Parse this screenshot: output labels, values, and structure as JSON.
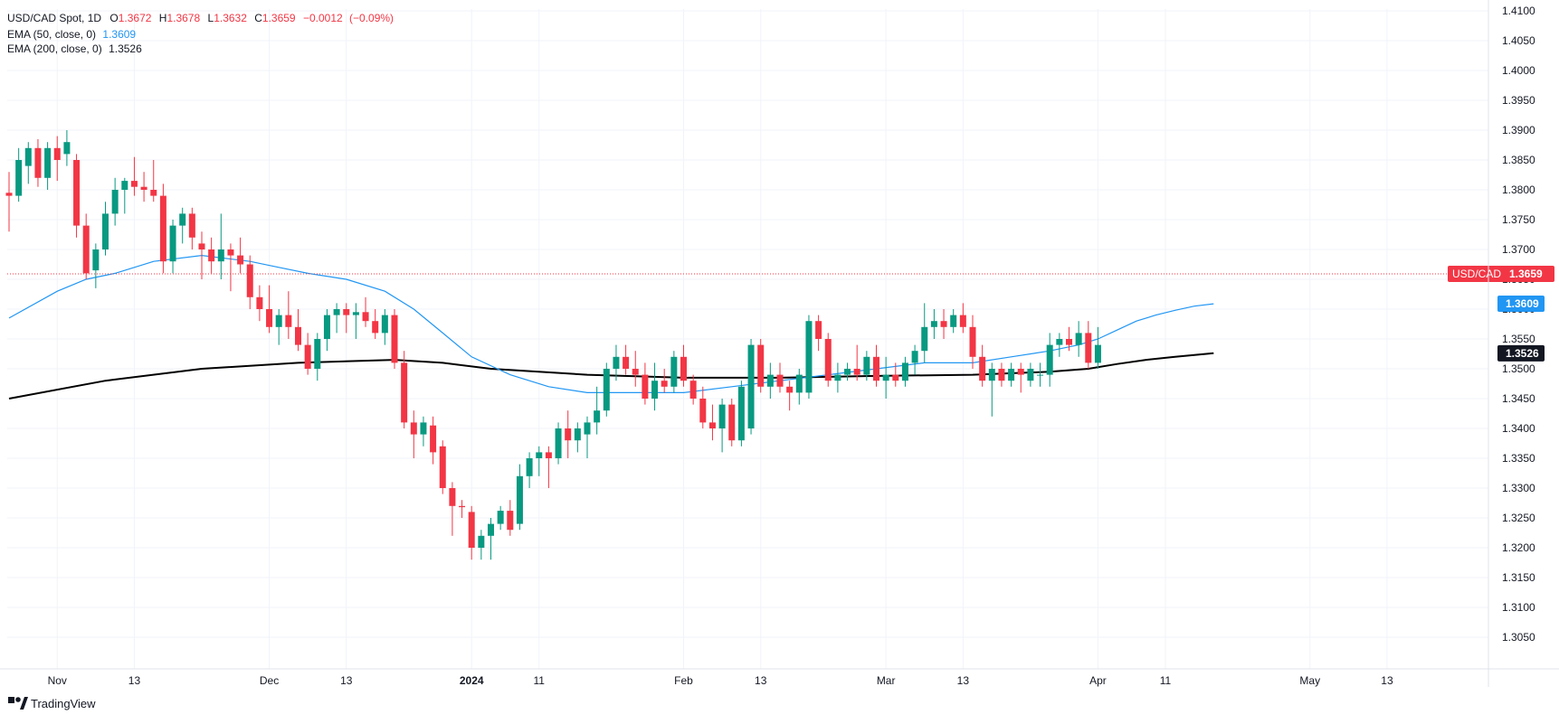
{
  "chart_data": {
    "type": "candlestick",
    "symbol": "USD/CAD Spot",
    "interval": "1D",
    "ohlc": {
      "o": "1.3672",
      "h": "1.3678",
      "l": "1.3632",
      "c": "1.3659",
      "change": "−0.0012",
      "change_pct": "(−0.09%)"
    },
    "indicators": [
      {
        "name": "EMA (50, close, 0)",
        "value": "1.3609",
        "color": "#2196f3"
      },
      {
        "name": "EMA (200, close, 0)",
        "value": "1.3526",
        "color": "#000000"
      }
    ],
    "price_label": {
      "symbol": "USD/CAD",
      "value": "1.3659"
    },
    "y_range": [
      1.3,
      1.41
    ],
    "y_ticks": [
      "1.4100",
      "1.4050",
      "1.4000",
      "1.3950",
      "1.3900",
      "1.3850",
      "1.3800",
      "1.3750",
      "1.3700",
      "1.3650",
      "1.3600",
      "1.3550",
      "1.3500",
      "1.3450",
      "1.3400",
      "1.3350",
      "1.3300",
      "1.3250",
      "1.3200",
      "1.3150",
      "1.3100",
      "1.3050"
    ],
    "x_labels": [
      {
        "label": "Nov",
        "bar": 5,
        "bold": false
      },
      {
        "label": "13",
        "bar": 13,
        "bold": false
      },
      {
        "label": "Dec",
        "bar": 27,
        "bold": false
      },
      {
        "label": "13",
        "bar": 35,
        "bold": false
      },
      {
        "label": "2024",
        "bar": 48,
        "bold": true
      },
      {
        "label": "11",
        "bar": 55,
        "bold": false
      },
      {
        "label": "Feb",
        "bar": 70,
        "bold": false
      },
      {
        "label": "13",
        "bar": 78,
        "bold": false
      },
      {
        "label": "Mar",
        "bar": 91,
        "bold": false
      },
      {
        "label": "13",
        "bar": 99,
        "bold": false
      },
      {
        "label": "Apr",
        "bar": 113,
        "bold": false
      },
      {
        "label": "11",
        "bar": 120,
        "bold": false
      },
      {
        "label": "May",
        "bar": 135,
        "bold": false
      },
      {
        "label": "13",
        "bar": 143,
        "bold": false
      }
    ],
    "candles": [
      [
        1.3795,
        1.383,
        1.373,
        1.379
      ],
      [
        1.379,
        1.387,
        1.378,
        1.385
      ],
      [
        1.384,
        1.388,
        1.381,
        1.387
      ],
      [
        1.387,
        1.3885,
        1.3805,
        1.382
      ],
      [
        1.382,
        1.388,
        1.38,
        1.387
      ],
      [
        1.387,
        1.389,
        1.3815,
        1.385
      ],
      [
        1.386,
        1.39,
        1.384,
        1.388
      ],
      [
        1.385,
        1.386,
        1.372,
        1.374
      ],
      [
        1.374,
        1.376,
        1.365,
        1.366
      ],
      [
        1.3665,
        1.371,
        1.3635,
        1.37
      ],
      [
        1.37,
        1.378,
        1.369,
        1.376
      ],
      [
        1.376,
        1.382,
        1.374,
        1.38
      ],
      [
        1.38,
        1.382,
        1.376,
        1.3815
      ],
      [
        1.3815,
        1.3855,
        1.379,
        1.3805
      ],
      [
        1.3805,
        1.383,
        1.378,
        1.38
      ],
      [
        1.38,
        1.385,
        1.378,
        1.379
      ],
      [
        1.379,
        1.381,
        1.366,
        1.368
      ],
      [
        1.368,
        1.375,
        1.366,
        1.374
      ],
      [
        1.374,
        1.377,
        1.371,
        1.376
      ],
      [
        1.376,
        1.377,
        1.37,
        1.372
      ],
      [
        1.371,
        1.373,
        1.365,
        1.37
      ],
      [
        1.37,
        1.372,
        1.366,
        1.368
      ],
      [
        1.368,
        1.376,
        1.365,
        1.37
      ],
      [
        1.37,
        1.371,
        1.363,
        1.369
      ],
      [
        1.369,
        1.372,
        1.366,
        1.3675
      ],
      [
        1.3675,
        1.369,
        1.36,
        1.362
      ],
      [
        1.362,
        1.364,
        1.358,
        1.36
      ],
      [
        1.36,
        1.364,
        1.356,
        1.357
      ],
      [
        1.357,
        1.36,
        1.354,
        1.359
      ],
      [
        1.359,
        1.363,
        1.355,
        1.357
      ],
      [
        1.357,
        1.36,
        1.353,
        1.354
      ],
      [
        1.354,
        1.356,
        1.349,
        1.35
      ],
      [
        1.35,
        1.356,
        1.348,
        1.355
      ],
      [
        1.355,
        1.36,
        1.353,
        1.359
      ],
      [
        1.359,
        1.361,
        1.356,
        1.36
      ],
      [
        1.36,
        1.361,
        1.356,
        1.359
      ],
      [
        1.359,
        1.361,
        1.355,
        1.3595
      ],
      [
        1.3595,
        1.362,
        1.357,
        1.358
      ],
      [
        1.358,
        1.36,
        1.355,
        1.356
      ],
      [
        1.356,
        1.36,
        1.354,
        1.359
      ],
      [
        1.359,
        1.36,
        1.35,
        1.351
      ],
      [
        1.351,
        1.353,
        1.34,
        1.341
      ],
      [
        1.341,
        1.343,
        1.335,
        1.339
      ],
      [
        1.339,
        1.342,
        1.337,
        1.341
      ],
      [
        1.3405,
        1.342,
        1.334,
        1.336
      ],
      [
        1.337,
        1.338,
        1.329,
        1.33
      ],
      [
        1.33,
        1.331,
        1.322,
        1.327
      ],
      [
        1.327,
        1.328,
        1.325,
        1.3268
      ],
      [
        1.326,
        1.327,
        1.318,
        1.32
      ],
      [
        1.32,
        1.323,
        1.318,
        1.322
      ],
      [
        1.322,
        1.325,
        1.318,
        1.324
      ],
      [
        1.324,
        1.327,
        1.323,
        1.3262
      ],
      [
        1.3262,
        1.328,
        1.322,
        1.323
      ],
      [
        1.324,
        1.334,
        1.323,
        1.332
      ],
      [
        1.332,
        1.336,
        1.33,
        1.335
      ],
      [
        1.335,
        1.337,
        1.332,
        1.336
      ],
      [
        1.336,
        1.337,
        1.33,
        1.335
      ],
      [
        1.335,
        1.341,
        1.334,
        1.34
      ],
      [
        1.34,
        1.343,
        1.335,
        1.338
      ],
      [
        1.338,
        1.341,
        1.336,
        1.34
      ],
      [
        1.339,
        1.342,
        1.335,
        1.341
      ],
      [
        1.341,
        1.347,
        1.339,
        1.343
      ],
      [
        1.343,
        1.351,
        1.342,
        1.35
      ],
      [
        1.35,
        1.354,
        1.348,
        1.352
      ],
      [
        1.352,
        1.354,
        1.349,
        1.35
      ],
      [
        1.35,
        1.353,
        1.347,
        1.349
      ],
      [
        1.349,
        1.351,
        1.344,
        1.345
      ],
      [
        1.345,
        1.351,
        1.343,
        1.348
      ],
      [
        1.348,
        1.35,
        1.346,
        1.347
      ],
      [
        1.347,
        1.353,
        1.346,
        1.352
      ],
      [
        1.352,
        1.354,
        1.347,
        1.348
      ],
      [
        1.348,
        1.349,
        1.344,
        1.345
      ],
      [
        1.345,
        1.347,
        1.34,
        1.341
      ],
      [
        1.341,
        1.344,
        1.338,
        1.34
      ],
      [
        1.34,
        1.345,
        1.336,
        1.344
      ],
      [
        1.344,
        1.345,
        1.337,
        1.338
      ],
      [
        1.338,
        1.348,
        1.337,
        1.347
      ],
      [
        1.34,
        1.355,
        1.339,
        1.354
      ],
      [
        1.354,
        1.355,
        1.346,
        1.347
      ],
      [
        1.347,
        1.351,
        1.345,
        1.349
      ],
      [
        1.349,
        1.351,
        1.346,
        1.347
      ],
      [
        1.347,
        1.348,
        1.343,
        1.346
      ],
      [
        1.346,
        1.35,
        1.344,
        1.349
      ],
      [
        1.346,
        1.359,
        1.345,
        1.358
      ],
      [
        1.358,
        1.359,
        1.353,
        1.355
      ],
      [
        1.355,
        1.356,
        1.347,
        1.348
      ],
      [
        1.348,
        1.351,
        1.346,
        1.349
      ],
      [
        1.349,
        1.351,
        1.348,
        1.35
      ],
      [
        1.35,
        1.354,
        1.348,
        1.349
      ],
      [
        1.349,
        1.353,
        1.348,
        1.352
      ],
      [
        1.352,
        1.354,
        1.347,
        1.348
      ],
      [
        1.348,
        1.352,
        1.345,
        1.349
      ],
      [
        1.349,
        1.351,
        1.347,
        1.348
      ],
      [
        1.348,
        1.352,
        1.347,
        1.351
      ],
      [
        1.351,
        1.354,
        1.349,
        1.353
      ],
      [
        1.353,
        1.361,
        1.351,
        1.357
      ],
      [
        1.357,
        1.36,
        1.355,
        1.358
      ],
      [
        1.358,
        1.36,
        1.355,
        1.357
      ],
      [
        1.357,
        1.36,
        1.356,
        1.359
      ],
      [
        1.359,
        1.361,
        1.356,
        1.357
      ],
      [
        1.357,
        1.359,
        1.35,
        1.352
      ],
      [
        1.352,
        1.354,
        1.347,
        1.348
      ],
      [
        1.348,
        1.351,
        1.342,
        1.35
      ],
      [
        1.35,
        1.351,
        1.347,
        1.348
      ],
      [
        1.348,
        1.351,
        1.347,
        1.35
      ],
      [
        1.35,
        1.351,
        1.346,
        1.349
      ],
      [
        1.348,
        1.351,
        1.347,
        1.35
      ],
      [
        1.349,
        1.351,
        1.347,
        1.349
      ],
      [
        1.349,
        1.356,
        1.347,
        1.354
      ],
      [
        1.354,
        1.356,
        1.352,
        1.355
      ],
      [
        1.355,
        1.357,
        1.353,
        1.354
      ],
      [
        1.354,
        1.358,
        1.352,
        1.356
      ],
      [
        1.356,
        1.358,
        1.35,
        1.351
      ],
      [
        1.351,
        1.357,
        1.35,
        1.354
      ]
    ],
    "ema50": [
      [
        0,
        1.3585
      ],
      [
        5,
        1.363
      ],
      [
        8,
        1.365
      ],
      [
        11,
        1.366
      ],
      [
        15,
        1.368
      ],
      [
        20,
        1.369
      ],
      [
        25,
        1.368
      ],
      [
        28,
        1.367
      ],
      [
        31,
        1.366
      ],
      [
        35,
        1.365
      ],
      [
        39,
        1.363
      ],
      [
        42,
        1.36
      ],
      [
        45,
        1.356
      ],
      [
        48,
        1.352
      ],
      [
        52,
        1.349
      ],
      [
        56,
        1.347
      ],
      [
        60,
        1.346
      ],
      [
        65,
        1.346
      ],
      [
        70,
        1.346
      ],
      [
        75,
        1.347
      ],
      [
        80,
        1.348
      ],
      [
        85,
        1.349
      ],
      [
        90,
        1.35
      ],
      [
        95,
        1.351
      ],
      [
        100,
        1.351
      ],
      [
        104,
        1.352
      ],
      [
        108,
        1.353
      ],
      [
        111,
        1.354
      ],
      [
        113,
        1.355
      ],
      [
        115,
        1.3565
      ],
      [
        117,
        1.358
      ],
      [
        119,
        1.359
      ],
      [
        121,
        1.3598
      ],
      [
        123,
        1.3605
      ],
      [
        125,
        1.3609
      ]
    ],
    "ema200": [
      [
        0,
        1.345
      ],
      [
        10,
        1.348
      ],
      [
        20,
        1.35
      ],
      [
        30,
        1.351
      ],
      [
        40,
        1.3515
      ],
      [
        45,
        1.351
      ],
      [
        50,
        1.35
      ],
      [
        60,
        1.349
      ],
      [
        70,
        1.3485
      ],
      [
        80,
        1.3485
      ],
      [
        90,
        1.3488
      ],
      [
        100,
        1.349
      ],
      [
        108,
        1.3495
      ],
      [
        112,
        1.35
      ],
      [
        115,
        1.3508
      ],
      [
        118,
        1.3515
      ],
      [
        121,
        1.352
      ],
      [
        125,
        1.3526
      ]
    ],
    "last_price": 1.3659,
    "colors": {
      "up": "#089981",
      "down": "#f23645",
      "ema50": "#2196f3",
      "ema200": "#000000",
      "grid": "#f0f3fa",
      "last_label": "#f23645"
    },
    "grid": true
  },
  "footer": {
    "brand": "TradingView"
  }
}
